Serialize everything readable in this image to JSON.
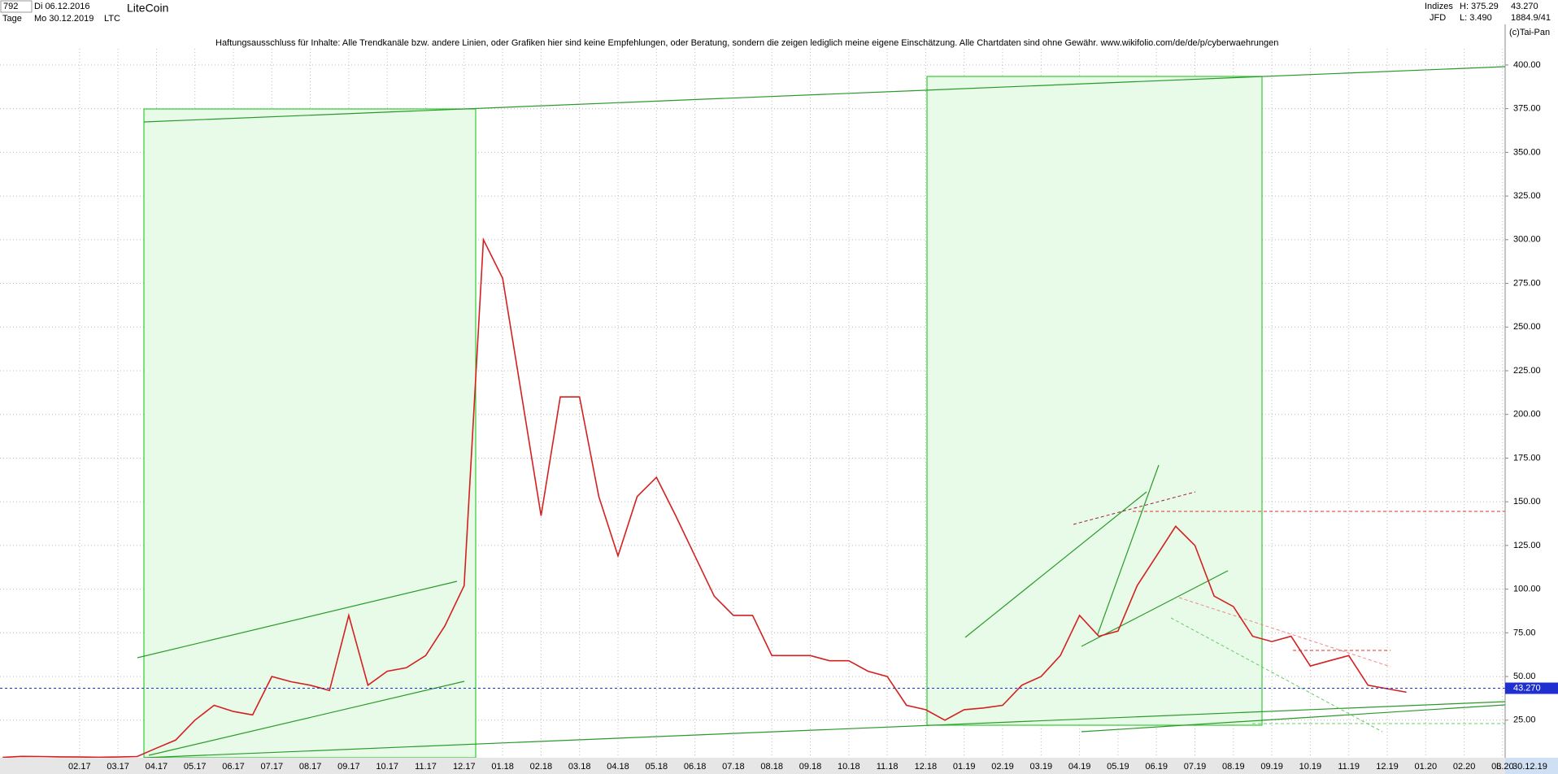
{
  "toolbar": {
    "count": "792",
    "from": "Di 06.12.2016",
    "period": "Tage",
    "to": "Mo 30.12.2019",
    "symbol": "LTC",
    "group": "Indizes",
    "source": "JFD",
    "high": "H: 375.29",
    "low": "L: 3.490",
    "last": "43.270",
    "ratio": "1884.9/41",
    "copyright": "(c)Tai-Pan",
    "cursor_date": "30.12.19",
    "scale_mode": "L"
  },
  "chart_data": {
    "type": "line",
    "title": "LiteCoin",
    "subtitle": "Haftungsausschluss für Inhalte: Alle Trendkanäle bzw. andere Linien, oder Grafiken hier sind keine Empfehlungen, oder Beratung, sondern die zeigen lediglich meine eigene Einschätzung. Alle Chartdaten sind ohne Gewähr.  www.wikifolio.com/de/de/p/cyberwaehrungen",
    "categories": [
      null,
      null,
      null,
      null,
      "02.17",
      null,
      "03.17",
      null,
      "04.17",
      null,
      "05.17",
      null,
      "06.17",
      null,
      "07.17",
      null,
      "08.17",
      null,
      "09.17",
      null,
      "10.17",
      null,
      "11.17",
      null,
      "12.17",
      null,
      "01.18",
      null,
      "02.18",
      null,
      "03.18",
      null,
      "04.18",
      null,
      "05.18",
      null,
      "06.18",
      null,
      "07.18",
      null,
      "08.18",
      null,
      "09.18",
      null,
      "10.18",
      null,
      "11.18",
      null,
      "12.18",
      null,
      "01.19",
      null,
      "02.19",
      null,
      "03.19",
      null,
      "04.19",
      null,
      "05.19",
      null,
      "06.19",
      null,
      "07.19",
      null,
      "08.19",
      null,
      "09.19",
      null,
      "10.19",
      null,
      "11.19",
      null,
      "12.19",
      null,
      "01.20",
      null,
      "02.20",
      null,
      "03.20",
      null
    ],
    "series": [
      {
        "name": "LTC",
        "color": "#d42020",
        "values": [
          3.7,
          4.3,
          4.2,
          4.0,
          3.9,
          3.8,
          3.9,
          4.2,
          9,
          13.6,
          25,
          33.5,
          30,
          28,
          50,
          47,
          45,
          42,
          85,
          45,
          53,
          55,
          62,
          79,
          102,
          300,
          278,
          210,
          142,
          210,
          210,
          153,
          119,
          153,
          164,
          142,
          119,
          96,
          85,
          85,
          62,
          62,
          62,
          59,
          59,
          53,
          50,
          33.5,
          31,
          25,
          31,
          32,
          33.5,
          45,
          50,
          62,
          85,
          73,
          76,
          102,
          119,
          136,
          125,
          96,
          90,
          73,
          70,
          73,
          56,
          59,
          62,
          45,
          43,
          41,
          null,
          null,
          null,
          null,
          null,
          null
        ]
      }
    ],
    "last_price": {
      "value": 43.27,
      "label": "43.270"
    },
    "ylim": [
      3.5,
      423
    ],
    "yticks": [
      {
        "value": 25,
        "label": "25.00"
      },
      {
        "value": 50,
        "label": "50.00"
      },
      {
        "value": 75,
        "label": "75.00"
      },
      {
        "value": 100,
        "label": "100.00"
      },
      {
        "value": 125,
        "label": "125.00"
      },
      {
        "value": 150,
        "label": "150.00"
      },
      {
        "value": 175,
        "label": "175.00"
      },
      {
        "value": 200,
        "label": "200.00"
      },
      {
        "value": 225,
        "label": "225.00"
      },
      {
        "value": 250,
        "label": "250.00"
      },
      {
        "value": 275,
        "label": "275.00"
      },
      {
        "value": 300,
        "label": "300.00"
      },
      {
        "value": 325,
        "label": "325.00"
      },
      {
        "value": 350,
        "label": "350.00"
      },
      {
        "value": 375,
        "label": "375.00"
      },
      {
        "value": 400,
        "label": "400.00"
      }
    ],
    "grid": true
  }
}
